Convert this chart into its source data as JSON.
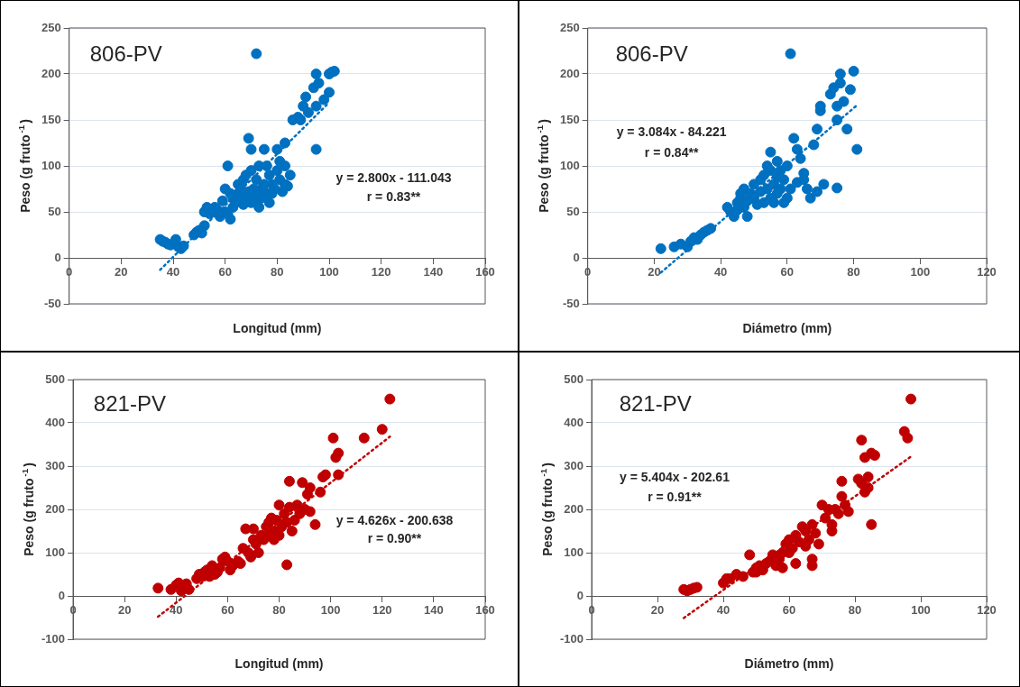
{
  "chart_data": [
    {
      "type": "scatter",
      "xlabel": "Longitud (mm)",
      "ylabel": "Peso (g fruto$^{-1}$)",
      "xlim": [
        0,
        160
      ],
      "xticks": [
        0,
        20,
        40,
        60,
        80,
        100,
        120,
        140,
        160
      ],
      "ylim": [
        -50,
        250
      ],
      "yticks": [
        -50,
        0,
        50,
        100,
        150,
        200,
        250
      ],
      "grid": "y",
      "annotations": [
        "806-PV",
        "y = 2.800x - 111.043",
        "r = 0.83**"
      ],
      "series": [
        {
          "color": "#0070c0",
          "marker": "circle",
          "x": [
            35,
            36,
            37,
            38,
            39,
            41,
            42,
            43,
            44,
            48,
            49,
            50,
            51,
            52,
            52,
            53,
            54,
            56,
            57,
            58,
            59,
            60,
            60,
            61,
            61,
            62,
            62,
            63,
            63,
            64,
            65,
            65,
            66,
            66,
            67,
            67,
            68,
            68,
            69,
            69,
            70,
            70,
            70,
            71,
            71,
            72,
            72,
            73,
            73,
            74,
            74,
            75,
            75,
            76,
            76,
            77,
            77,
            78,
            78,
            79,
            80,
            80,
            81,
            81,
            82,
            83,
            83,
            84,
            85,
            83,
            86,
            88,
            89,
            90,
            91,
            92,
            94,
            95,
            95,
            95,
            96,
            98,
            100,
            100,
            101,
            102,
            72
          ],
          "values": [
            20,
            18,
            17,
            15,
            14,
            20,
            12,
            10,
            13,
            25,
            28,
            30,
            27,
            35,
            50,
            55,
            48,
            55,
            52,
            45,
            62,
            50,
            75,
            48,
            100,
            42,
            70,
            55,
            65,
            60,
            70,
            80,
            62,
            75,
            85,
            58,
            90,
            65,
            72,
            130,
            60,
            95,
            118,
            75,
            62,
            85,
            68,
            100,
            55,
            75,
            65,
            118,
            80,
            70,
            100,
            60,
            90,
            80,
            70,
            75,
            118,
            95,
            85,
            105,
            72,
            80,
            100,
            78,
            90,
            125,
            150,
            153,
            150,
            165,
            175,
            158,
            185,
            165,
            200,
            118,
            190,
            172,
            180,
            200,
            202,
            203,
            222
          ]
        },
        {
          "type": "line",
          "color": "#0070c0",
          "line_style": "dotted",
          "x": [
            35,
            100
          ],
          "values": [
            -13,
            169
          ]
        }
      ]
    },
    {
      "type": "scatter",
      "xlabel": "Diámetro (mm)",
      "ylabel": "Peso (g fruto$^{-1}$)",
      "xlim": [
        0,
        120
      ],
      "xticks": [
        0,
        20,
        40,
        60,
        80,
        100,
        120
      ],
      "ylim": [
        -50,
        250
      ],
      "yticks": [
        -50,
        0,
        50,
        100,
        150,
        200,
        250
      ],
      "grid": "y",
      "annotations": [
        "806-PV",
        "y = 3.084x - 84.221",
        "r = 0.84**"
      ],
      "series": [
        {
          "color": "#0070c0",
          "marker": "circle",
          "x": [
            22,
            26,
            28,
            30,
            31,
            32,
            33,
            34,
            35,
            36,
            37,
            42,
            43,
            44,
            45,
            45,
            46,
            46,
            47,
            47,
            48,
            48,
            49,
            50,
            50,
            51,
            52,
            52,
            53,
            53,
            54,
            54,
            55,
            55,
            56,
            56,
            57,
            57,
            58,
            58,
            59,
            59,
            60,
            60,
            61,
            62,
            63,
            63,
            64,
            65,
            65,
            66,
            67,
            68,
            69,
            69,
            70,
            70,
            71,
            73,
            74,
            75,
            75,
            75,
            76,
            76,
            77,
            78,
            79,
            80,
            81,
            61,
            55,
            57
          ],
          "values": [
            10,
            12,
            15,
            12,
            18,
            22,
            20,
            25,
            28,
            30,
            32,
            55,
            50,
            45,
            52,
            60,
            70,
            65,
            75,
            55,
            45,
            62,
            70,
            65,
            80,
            58,
            85,
            72,
            90,
            60,
            100,
            75,
            95,
            65,
            80,
            60,
            105,
            70,
            95,
            75,
            60,
            85,
            65,
            100,
            75,
            130,
            82,
            118,
            108,
            92,
            85,
            75,
            65,
            123,
            140,
            72,
            165,
            160,
            80,
            178,
            185,
            165,
            76,
            150,
            200,
            190,
            170,
            140,
            183,
            203,
            118,
            222,
            115,
            88
          ]
        },
        {
          "type": "line",
          "color": "#0070c0",
          "line_style": "dotted",
          "x": [
            22,
            81
          ],
          "values": [
            -16,
            166
          ]
        }
      ]
    },
    {
      "type": "scatter",
      "xlabel": "Longitud (mm)",
      "ylabel": "Peso (g fruto$^{-1}$)",
      "xlim": [
        0,
        160
      ],
      "xticks": [
        0,
        20,
        40,
        60,
        80,
        100,
        120,
        140,
        160
      ],
      "ylim": [
        -100,
        500
      ],
      "yticks": [
        -100,
        0,
        100,
        200,
        300,
        400,
        500
      ],
      "grid": "y",
      "annotations": [
        "821-PV",
        "y = 4.626x - 200.638",
        "r = 0.90**"
      ],
      "series": [
        {
          "color": "#c00000",
          "marker": "circle",
          "x": [
            33,
            38,
            40,
            41,
            42,
            44,
            45,
            48,
            49,
            50,
            51,
            52,
            53,
            54,
            55,
            56,
            57,
            58,
            59,
            60,
            61,
            62,
            64,
            65,
            66,
            67,
            68,
            69,
            70,
            70,
            71,
            72,
            73,
            74,
            75,
            76,
            77,
            78,
            79,
            80,
            80,
            81,
            82,
            83,
            83,
            84,
            84,
            86,
            87,
            88,
            89,
            90,
            91,
            92,
            92,
            94,
            96,
            97,
            98,
            101,
            102,
            103,
            103,
            113,
            120,
            123,
            85,
            78,
            76
          ],
          "values": [
            18,
            15,
            25,
            30,
            12,
            28,
            15,
            40,
            50,
            45,
            55,
            60,
            45,
            70,
            50,
            55,
            65,
            85,
            90,
            80,
            60,
            70,
            80,
            75,
            110,
            155,
            100,
            90,
            130,
            155,
            120,
            100,
            140,
            130,
            160,
            170,
            180,
            150,
            175,
            140,
            210,
            160,
            190,
            170,
            72,
            205,
            265,
            175,
            210,
            190,
            262,
            200,
            235,
            195,
            250,
            165,
            240,
            275,
            280,
            365,
            320,
            330,
            280,
            365,
            385,
            455,
            150,
            130,
            140
          ]
        },
        {
          "type": "line",
          "color": "#c00000",
          "line_style": "dotted",
          "x": [
            33,
            123
          ],
          "values": [
            -48,
            368
          ]
        }
      ]
    },
    {
      "type": "scatter",
      "xlabel": "Diámetro (mm)",
      "ylabel": "Peso (g fruto$^{-1}$)",
      "xlim": [
        0,
        120
      ],
      "xticks": [
        0,
        20,
        40,
        60,
        80,
        100,
        120
      ],
      "ylim": [
        -100,
        500
      ],
      "yticks": [
        -100,
        0,
        100,
        200,
        300,
        400,
        500
      ],
      "grid": "y",
      "annotations": [
        "821-PV",
        "y = 5.404x - 202.61",
        "r = 0.91**"
      ],
      "series": [
        {
          "color": "#c00000",
          "marker": "circle",
          "x": [
            28,
            29,
            30,
            31,
            32,
            40,
            41,
            42,
            44,
            46,
            48,
            49,
            50,
            51,
            52,
            53,
            54,
            56,
            57,
            58,
            58,
            59,
            60,
            61,
            62,
            62,
            63,
            64,
            65,
            66,
            67,
            67,
            67,
            68,
            69,
            70,
            71,
            72,
            73,
            73,
            74,
            75,
            76,
            76,
            77,
            78,
            81,
            82,
            82,
            83,
            83,
            84,
            84,
            85,
            85,
            86,
            95,
            96,
            97,
            65,
            60,
            55,
            50
          ],
          "values": [
            15,
            12,
            15,
            18,
            20,
            30,
            40,
            40,
            50,
            45,
            95,
            55,
            65,
            70,
            60,
            75,
            80,
            70,
            85,
            65,
            100,
            120,
            130,
            110,
            140,
            75,
            125,
            160,
            150,
            130,
            165,
            85,
            70,
            145,
            120,
            210,
            180,
            200,
            165,
            150,
            200,
            190,
            230,
            265,
            210,
            195,
            270,
            360,
            260,
            320,
            240,
            275,
            250,
            330,
            165,
            325,
            380,
            365,
            455,
            115,
            100,
            95,
            55
          ]
        },
        {
          "type": "line",
          "color": "#c00000",
          "line_style": "dotted",
          "x": [
            28,
            97
          ],
          "values": [
            -51,
            322
          ]
        }
      ]
    }
  ]
}
